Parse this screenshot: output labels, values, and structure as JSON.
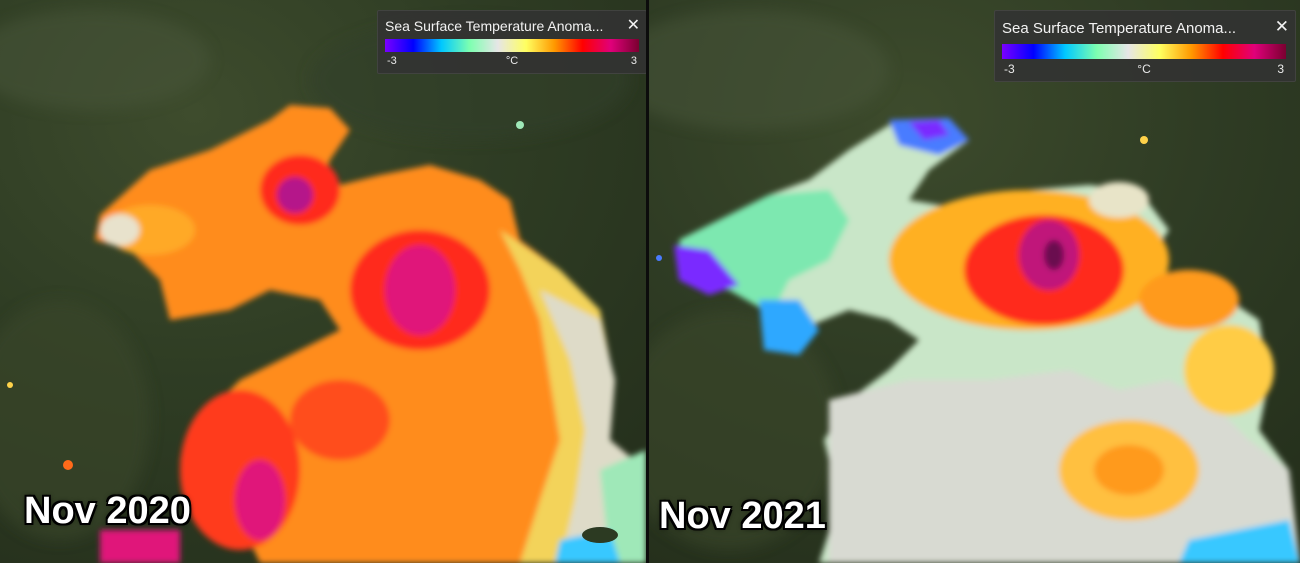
{
  "panels": [
    {
      "date_label": "Nov 2020",
      "legend": {
        "title": "Sea Surface Temperature Anoma...",
        "min_label": "-3",
        "unit_label": "°C",
        "max_label": "3",
        "close_glyph": "✕"
      }
    },
    {
      "date_label": "Nov 2021",
      "legend": {
        "title": "Sea Surface Temperature Anoma...",
        "min_label": "-3",
        "unit_label": "°C",
        "max_label": "3",
        "close_glyph": "✕"
      }
    }
  ],
  "colorscale": [
    "#7a00ff",
    "#0000ff",
    "#00c8ff",
    "#7dffb0",
    "#e6e6e6",
    "#ffff60",
    "#ff9900",
    "#ff0000",
    "#e0007a",
    "#7a0030"
  ],
  "colors": {
    "land_dark": "#2c3a22",
    "land_mid": "#3b4a2c",
    "land_light": "#55613e"
  }
}
